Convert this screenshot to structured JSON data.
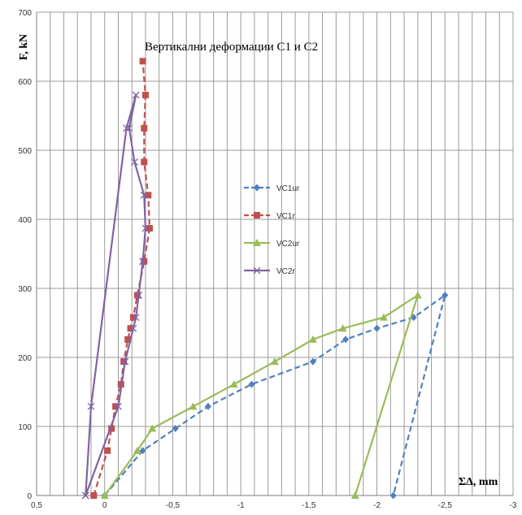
{
  "chart_data": {
    "type": "line",
    "title": "Вертикални деформации С1 и С2",
    "xlabel": "ΣΔ, mm",
    "ylabel": "F, kN",
    "xlim": [
      0.5,
      -3
    ],
    "ylim": [
      0,
      700
    ],
    "x_ticks": [
      0.5,
      0,
      -0.5,
      -1,
      -1.5,
      -2,
      -2.5,
      -3
    ],
    "x_tick_labels": [
      "0,5",
      "0",
      "-0,5",
      "-1",
      "-1,5",
      "-2",
      "-2,5",
      "-3"
    ],
    "y_ticks": [
      0,
      100,
      200,
      300,
      400,
      500,
      600,
      700
    ],
    "grid": true,
    "legend_position": "center",
    "series": [
      {
        "name": "VC1ur",
        "color": "#4f81bd",
        "dash": "dashed",
        "marker": "diamond",
        "points": [
          [
            0,
            0
          ],
          [
            -0.28,
            65
          ],
          [
            -0.52,
            97
          ],
          [
            -0.76,
            129
          ],
          [
            -1.08,
            161
          ],
          [
            -1.53,
            194
          ],
          [
            -1.77,
            226
          ],
          [
            -2.0,
            242
          ],
          [
            -2.27,
            258
          ],
          [
            -2.5,
            290
          ],
          [
            -2.12,
            0
          ]
        ]
      },
      {
        "name": "VC1r",
        "color": "#c0504d",
        "dash": "dashed",
        "marker": "square",
        "points": [
          [
            0.08,
            0
          ],
          [
            -0.02,
            65
          ],
          [
            -0.05,
            97
          ],
          [
            -0.08,
            129
          ],
          [
            -0.12,
            161
          ],
          [
            -0.14,
            194
          ],
          [
            -0.17,
            226
          ],
          [
            -0.19,
            242
          ],
          [
            -0.21,
            258
          ],
          [
            -0.24,
            290
          ],
          [
            -0.29,
            339
          ],
          [
            -0.33,
            387
          ],
          [
            -0.32,
            435
          ],
          [
            -0.29,
            483
          ],
          [
            -0.29,
            532
          ],
          [
            -0.3,
            580
          ],
          [
            -0.28,
            629
          ]
        ]
      },
      {
        "name": "VC2ur",
        "color": "#9bbb59",
        "dash": "solid",
        "marker": "triangle",
        "points": [
          [
            0,
            0
          ],
          [
            -0.24,
            65
          ],
          [
            -0.35,
            97
          ],
          [
            -0.65,
            129
          ],
          [
            -0.95,
            161
          ],
          [
            -1.25,
            194
          ],
          [
            -1.53,
            226
          ],
          [
            -1.75,
            242
          ],
          [
            -2.05,
            258
          ],
          [
            -2.3,
            290
          ],
          [
            -1.84,
            0
          ]
        ]
      },
      {
        "name": "VC2r",
        "color": "#8064a2",
        "dash": "solid",
        "marker": "x",
        "points": [
          [
            0.14,
            0
          ],
          [
            -0.1,
            129
          ],
          [
            -0.15,
            194
          ],
          [
            -0.21,
            242
          ],
          [
            -0.23,
            258
          ],
          [
            -0.25,
            290
          ],
          [
            -0.28,
            339
          ],
          [
            -0.3,
            387
          ],
          [
            -0.29,
            435
          ],
          [
            -0.22,
            483
          ],
          [
            -0.18,
            532
          ],
          [
            -0.23,
            580
          ],
          [
            -0.16,
            532
          ],
          [
            0.1,
            129
          ],
          [
            0.14,
            0
          ]
        ]
      }
    ]
  }
}
